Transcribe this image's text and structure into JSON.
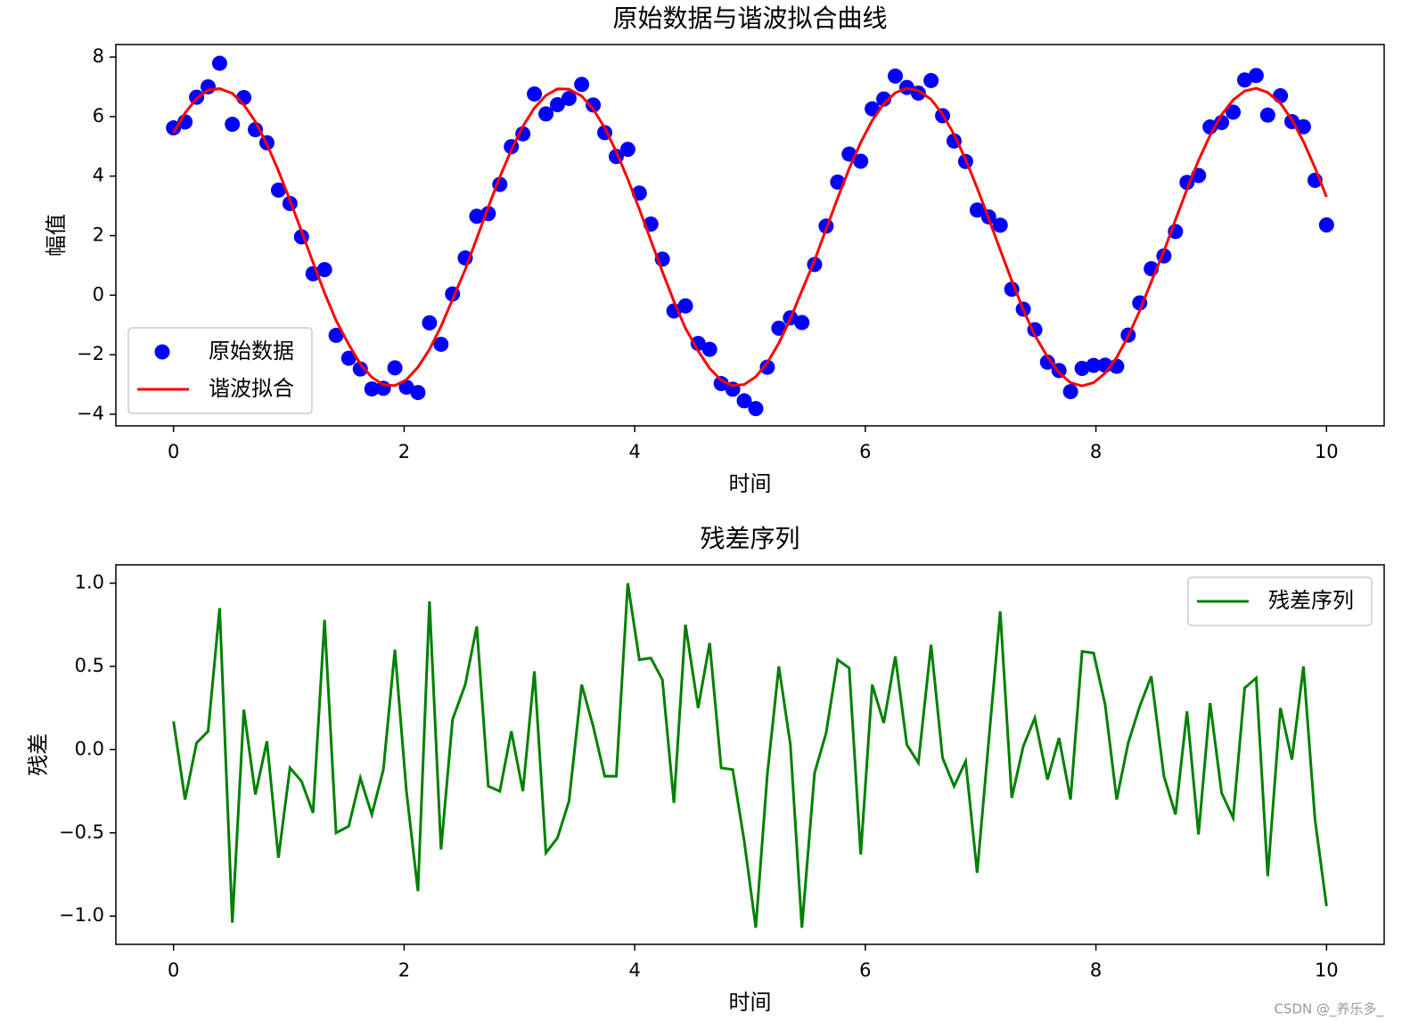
{
  "chart_data": [
    {
      "type": "scatter",
      "title": "原始数据与谐波拟合曲线",
      "xlabel": "时间",
      "ylabel": "幅值",
      "x": [
        0,
        0.1,
        0.2,
        0.3,
        0.4,
        0.51,
        0.61,
        0.71,
        0.81,
        0.91,
        1.01,
        1.11,
        1.21,
        1.31,
        1.41,
        1.52,
        1.62,
        1.72,
        1.82,
        1.92,
        2.02,
        2.12,
        2.22,
        2.32,
        2.42,
        2.53,
        2.63,
        2.73,
        2.83,
        2.93,
        3.03,
        3.13,
        3.23,
        3.33,
        3.43,
        3.54,
        3.64,
        3.74,
        3.84,
        3.94,
        4.04,
        4.14,
        4.24,
        4.34,
        4.44,
        4.55,
        4.65,
        4.75,
        4.85,
        4.95,
        5.05,
        5.15,
        5.25,
        5.35,
        5.45,
        5.56,
        5.66,
        5.76,
        5.86,
        5.96,
        6.06,
        6.16,
        6.26,
        6.36,
        6.46,
        6.57,
        6.67,
        6.77,
        6.87,
        6.97,
        7.07,
        7.17,
        7.27,
        7.37,
        7.47,
        7.58,
        7.68,
        7.78,
        7.88,
        7.98,
        8.08,
        8.18,
        8.28,
        8.38,
        8.48,
        8.59,
        8.69,
        8.79,
        8.89,
        8.99,
        9.09,
        9.19,
        9.29,
        9.39,
        9.49,
        9.6,
        9.7,
        9.8,
        9.9,
        10
      ],
      "series": [
        {
          "name": "原始数据",
          "type": "scatter",
          "color": "#0000ff",
          "values": [
            5.62,
            5.82,
            6.65,
            7.0,
            7.79,
            5.74,
            6.64,
            5.56,
            5.12,
            3.53,
            3.08,
            1.96,
            0.72,
            0.86,
            -1.35,
            -2.12,
            -2.48,
            -3.15,
            -3.13,
            -2.44,
            -3.09,
            -3.27,
            -0.93,
            -1.65,
            0.04,
            1.25,
            2.65,
            2.74,
            3.72,
            4.99,
            5.42,
            6.76,
            6.09,
            6.4,
            6.61,
            7.08,
            6.39,
            5.46,
            4.66,
            4.9,
            3.43,
            2.39,
            1.21,
            -0.53,
            -0.36,
            -1.62,
            -1.82,
            -2.97,
            -3.16,
            -3.55,
            -3.81,
            -2.42,
            -1.11,
            -0.76,
            -0.92,
            1.03,
            2.32,
            3.8,
            4.74,
            4.5,
            6.26,
            6.59,
            7.36,
            6.98,
            6.79,
            7.21,
            6.03,
            5.18,
            4.49,
            2.86,
            2.63,
            2.35,
            0.2,
            -0.47,
            -1.16,
            -2.25,
            -2.53,
            -3.24,
            -2.46,
            -2.36,
            -2.35,
            -2.39,
            -1.34,
            -0.26,
            0.89,
            1.32,
            2.14,
            3.79,
            4.02,
            5.65,
            5.8,
            6.15,
            7.23,
            7.38,
            6.05,
            6.7,
            5.83,
            5.66,
            3.86,
            2.36
          ]
        },
        {
          "name": "谐波拟合",
          "type": "line",
          "color": "#ff0000",
          "values": [
            5.45,
            6.12,
            6.61,
            6.89,
            6.94,
            6.78,
            6.4,
            5.83,
            5.07,
            4.18,
            3.19,
            2.15,
            1.1,
            0.08,
            -0.85,
            -1.66,
            -2.31,
            -2.76,
            -3.01,
            -3.04,
            -2.84,
            -2.42,
            -1.82,
            -1.05,
            -0.14,
            0.86,
            1.91,
            2.96,
            3.97,
            4.88,
            5.67,
            6.29,
            6.71,
            6.93,
            6.92,
            6.69,
            6.25,
            5.62,
            4.82,
            3.9,
            2.89,
            1.84,
            0.79,
            -0.21,
            -1.11,
            -1.87,
            -2.46,
            -2.86,
            -3.04,
            -3.0,
            -2.74,
            -2.27,
            -1.61,
            -0.79,
            0.15,
            1.17,
            2.22,
            3.26,
            4.25,
            5.13,
            5.87,
            6.43,
            6.8,
            6.95,
            6.87,
            6.58,
            6.08,
            5.4,
            4.56,
            3.6,
            2.58,
            1.52,
            0.49,
            -0.49,
            -1.35,
            -2.07,
            -2.6,
            -2.94,
            -3.05,
            -2.94,
            -2.62,
            -2.09,
            -1.38,
            -0.52,
            0.45,
            1.48,
            2.53,
            3.56,
            4.53,
            5.37,
            6.06,
            6.56,
            6.86,
            6.95,
            6.81,
            6.45,
            5.89,
            5.16,
            4.28,
            3.3
          ]
        }
      ],
      "xlim": [
        -0.5,
        10.5
      ],
      "xticks": [
        0,
        2,
        4,
        6,
        8,
        10
      ],
      "ylim": [
        -4.39,
        8.42
      ],
      "yticks": [
        {
          "value": -4,
          "label": "−4"
        },
        {
          "value": -2,
          "label": "−2"
        },
        0,
        2,
        4,
        6,
        8
      ],
      "legend": "lower left"
    },
    {
      "type": "line",
      "title": "残差序列",
      "xlabel": "时间",
      "ylabel": "残差",
      "x": [
        0,
        0.1,
        0.2,
        0.3,
        0.4,
        0.51,
        0.61,
        0.71,
        0.81,
        0.91,
        1.01,
        1.11,
        1.21,
        1.31,
        1.41,
        1.52,
        1.62,
        1.72,
        1.82,
        1.92,
        2.02,
        2.12,
        2.22,
        2.32,
        2.42,
        2.53,
        2.63,
        2.73,
        2.83,
        2.93,
        3.03,
        3.13,
        3.23,
        3.33,
        3.43,
        3.54,
        3.64,
        3.74,
        3.84,
        3.94,
        4.04,
        4.14,
        4.24,
        4.34,
        4.44,
        4.55,
        4.65,
        4.75,
        4.85,
        4.95,
        5.05,
        5.15,
        5.25,
        5.35,
        5.45,
        5.56,
        5.66,
        5.76,
        5.86,
        5.96,
        6.06,
        6.16,
        6.26,
        6.36,
        6.46,
        6.57,
        6.67,
        6.77,
        6.87,
        6.97,
        7.07,
        7.17,
        7.27,
        7.37,
        7.47,
        7.58,
        7.68,
        7.78,
        7.88,
        7.98,
        8.08,
        8.18,
        8.28,
        8.38,
        8.48,
        8.59,
        8.69,
        8.79,
        8.89,
        8.99,
        9.09,
        9.19,
        9.29,
        9.39,
        9.49,
        9.6,
        9.7,
        9.8,
        9.9,
        10
      ],
      "series": [
        {
          "name": "残差序列",
          "type": "line",
          "color": "#008000",
          "values": [
            0.17,
            -0.3,
            0.04,
            0.11,
            0.85,
            -1.04,
            0.24,
            -0.27,
            0.05,
            -0.65,
            -0.11,
            -0.19,
            -0.38,
            0.78,
            -0.5,
            -0.46,
            -0.17,
            -0.39,
            -0.12,
            0.6,
            -0.25,
            -0.85,
            0.89,
            -0.6,
            0.18,
            0.39,
            0.74,
            -0.22,
            -0.25,
            0.11,
            -0.25,
            0.47,
            -0.62,
            -0.53,
            -0.31,
            0.39,
            0.14,
            -0.16,
            -0.16,
            1.0,
            0.54,
            0.55,
            0.42,
            -0.32,
            0.75,
            0.25,
            0.64,
            -0.11,
            -0.12,
            -0.55,
            -1.07,
            -0.15,
            0.5,
            0.03,
            -1.07,
            -0.14,
            0.1,
            0.54,
            0.49,
            -0.63,
            0.39,
            0.16,
            0.56,
            0.03,
            -0.08,
            0.63,
            -0.05,
            -0.22,
            -0.07,
            -0.74,
            0.05,
            0.83,
            -0.29,
            0.02,
            0.19,
            -0.18,
            0.07,
            -0.3,
            0.59,
            0.58,
            0.27,
            -0.3,
            0.04,
            0.26,
            0.44,
            -0.16,
            -0.39,
            0.23,
            -0.51,
            0.28,
            -0.26,
            -0.41,
            0.37,
            0.43,
            -0.76,
            0.25,
            -0.06,
            0.5,
            -0.42,
            -0.94
          ]
        }
      ],
      "xlim": [
        -0.5,
        10.5
      ],
      "xticks": [
        0,
        2,
        4,
        6,
        8,
        10
      ],
      "ylim": [
        -1.17,
        1.11
      ],
      "yticks": [
        {
          "value": -1,
          "label": "−1.0"
        },
        {
          "value": -0.5,
          "label": "−0.5"
        },
        {
          "value": 0,
          "label": "0.0"
        },
        {
          "value": 0.5,
          "label": "0.5"
        },
        {
          "value": 1,
          "label": "1.0"
        }
      ],
      "legend": "upper right"
    }
  ],
  "watermark": "CSDN @_养乐多_"
}
